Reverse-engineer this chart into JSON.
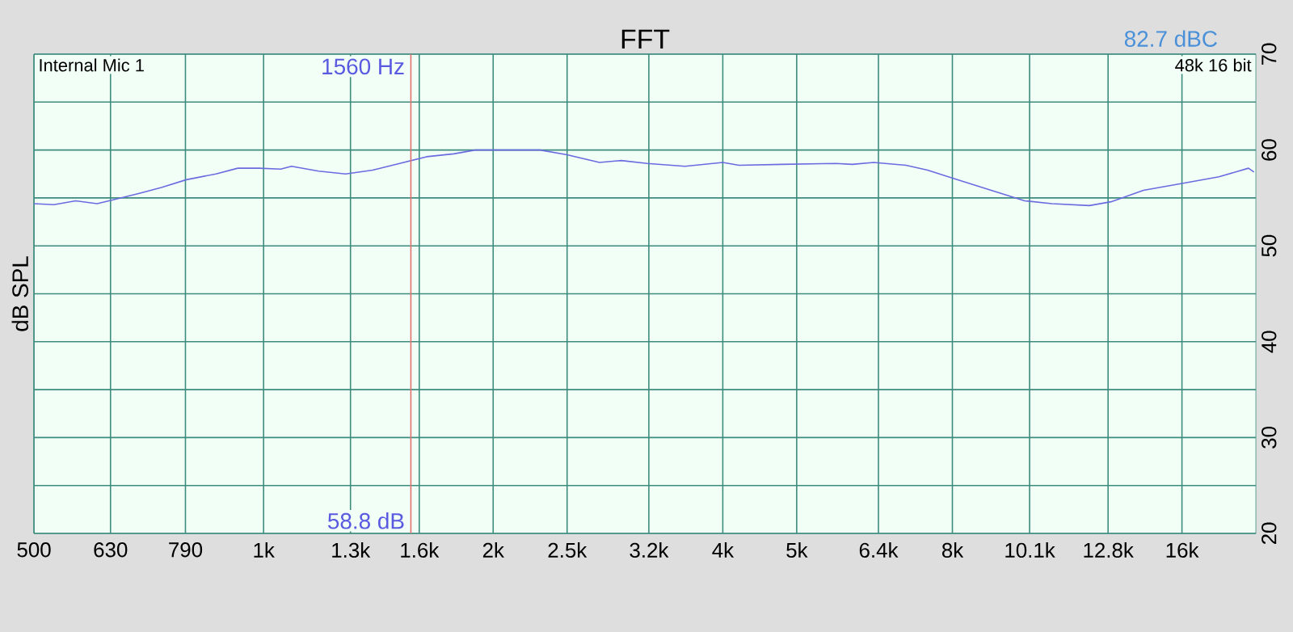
{
  "chart_data": {
    "type": "line",
    "title": "FFT",
    "ylabel": "dB SPL",
    "annotations": [
      "Internal Mic 1",
      "48k 16 bit",
      "82.7 dBC",
      "58.8 dB"
    ],
    "x": [
      500,
      531,
      567,
      605,
      635,
      689,
      736,
      792,
      866,
      925,
      987,
      1053,
      1088,
      1181,
      1281,
      1390,
      1508,
      1636,
      1775,
      1895,
      2022,
      2304,
      2500,
      2757,
      2943,
      3185,
      3568,
      4000,
      4200,
      4783,
      5630,
      5913,
      6308,
      6956,
      7423,
      8056,
      8738,
      9953,
      10800,
      12100,
      12915,
      14240,
      16220,
      17890,
      19560,
      19890
    ],
    "series": [
      {
        "color": "#6b6be0",
        "values": [
          54.4,
          54.3,
          54.7,
          54.4,
          54.8,
          55.5,
          56.1,
          56.9,
          57.5,
          58.1,
          58.1,
          58.0,
          58.3,
          57.8,
          57.5,
          57.9,
          58.6,
          59.3,
          59.6,
          60.0,
          60.0,
          60.0,
          59.5,
          58.7,
          58.9,
          58.6,
          58.3,
          58.7,
          58.4,
          58.5,
          58.6,
          58.5,
          58.7,
          58.4,
          57.9,
          57.0,
          56.1,
          54.7,
          54.4,
          54.2,
          54.6,
          55.8,
          56.6,
          57.2,
          58.1,
          57.7
        ]
      }
    ],
    "log": "x",
    "grid": true,
    "marker": "none",
    "line_style": "solid",
    "xlim": [
      500,
      20000
    ],
    "ylim": [
      20,
      70
    ],
    "xticks": [
      500,
      {
        "value": 630,
        "label": "630"
      },
      {
        "value": 790,
        "label": "790"
      },
      {
        "value": 1000,
        "label": "1k"
      },
      {
        "value": 1300,
        "label": "1.3k"
      },
      {
        "value": 1600,
        "label": "1.6k"
      },
      {
        "value": 2000,
        "label": "2k"
      },
      {
        "value": 2500,
        "label": "2.5k"
      },
      {
        "value": 3200,
        "label": "3.2k"
      },
      {
        "value": 4000,
        "label": "4k"
      },
      {
        "value": 5000,
        "label": "5k"
      },
      {
        "value": 6400,
        "label": "6.4k"
      },
      {
        "value": 8000,
        "label": "8k"
      },
      {
        "value": 10100,
        "label": "10.1k"
      },
      {
        "value": 12800,
        "label": "12.8k"
      },
      {
        "value": 16000,
        "label": "16k"
      }
    ],
    "yticks": [
      20,
      {
        "value": 25,
        "label": null
      },
      30,
      {
        "value": 35,
        "label": null
      },
      40,
      {
        "value": 45,
        "label": null
      },
      50,
      {
        "value": 55,
        "label": null
      },
      60,
      {
        "value": 65,
        "label": null
      },
      70
    ],
    "ref_lines": [
      {
        "axis": "x",
        "value": 1560,
        "label": "1560 Hz",
        "color": "#e07070",
        "line_style": "solid"
      }
    ]
  }
}
